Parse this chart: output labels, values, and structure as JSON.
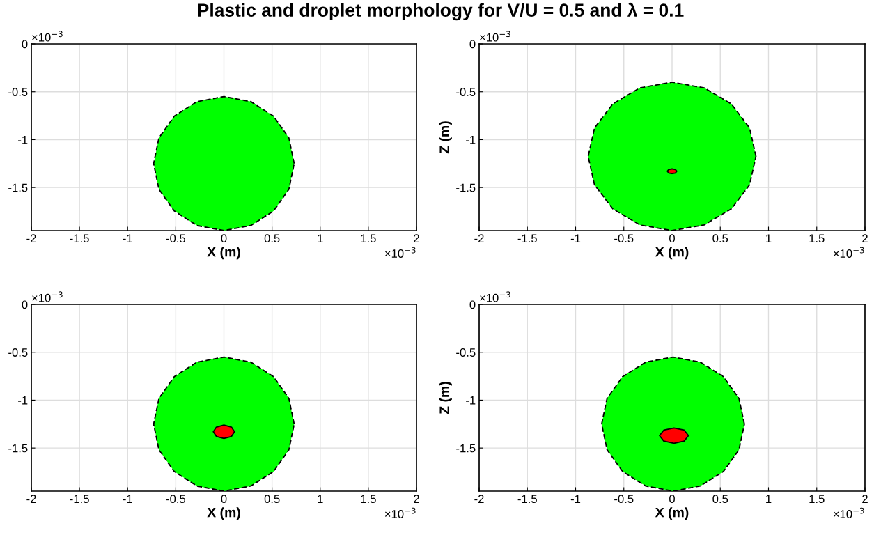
{
  "chart_data": [
    {
      "type": "area",
      "title": "Plastic and droplet morphology for V/U = 0.5 and λ = 0.1",
      "xlabel": "X (m)",
      "xlim": [
        -2,
        2
      ],
      "ylim": [
        -1.95,
        0
      ],
      "xticks": [
        -2,
        -1.5,
        -1,
        -0.5,
        0,
        0.5,
        1,
        1.5,
        2
      ],
      "yticks": [
        0,
        -0.5,
        -1,
        -1.5
      ],
      "grid": true,
      "annotations": [
        "×10$^{−3}$",
        "×10$^{−3}$"
      ],
      "series": [
        {
          "color": "#00ff00",
          "line_style": "dashed",
          "x": [
            0.73,
            0.675,
            0.516,
            0.28,
            0,
            -0.28,
            -0.516,
            -0.675,
            -0.73,
            -0.675,
            -0.516,
            -0.28,
            0,
            0.28,
            0.516,
            0.675
          ],
          "values": [
            -1.25,
            -0.982,
            -0.755,
            -0.603,
            -0.55,
            -0.603,
            -0.755,
            -0.982,
            -1.25,
            -1.518,
            -1.745,
            -1.897,
            -1.95,
            -1.897,
            -1.745,
            -1.518
          ]
        }
      ]
    },
    {
      "type": "area",
      "xlabel": "X (m)",
      "ylabel": "Z (m)",
      "xlim": [
        -2,
        2
      ],
      "ylim": [
        -1.95,
        0
      ],
      "xticks": [
        -2,
        -1.5,
        -1,
        -0.5,
        0,
        0.5,
        1,
        1.5,
        2
      ],
      "yticks": [
        0,
        -0.5,
        -1,
        -1.5
      ],
      "grid": true,
      "annotations": [
        "×10$^{−3}$",
        "×10$^{−3}$"
      ],
      "series": [
        {
          "color": "#00ff00",
          "line_style": "dashed",
          "x": [
            0.87,
            0.804,
            0.615,
            0.333,
            0,
            -0.333,
            -0.615,
            -0.804,
            -0.87,
            -0.804,
            -0.615,
            -0.333,
            0,
            0.333,
            0.615,
            0.804
          ],
          "values": [
            -1.175,
            -0.878,
            -0.627,
            -0.459,
            -0.4,
            -0.459,
            -0.627,
            -0.878,
            -1.175,
            -1.472,
            -1.723,
            -1.891,
            -1.95,
            -1.891,
            -1.723,
            -1.472
          ]
        },
        {
          "color": "#ff0000",
          "line_style": "solid",
          "x": [
            0.05,
            0.035,
            0,
            -0.035,
            -0.05,
            -0.035,
            0,
            0.035
          ],
          "values": [
            -1.33,
            -1.312,
            -1.305,
            -1.312,
            -1.33,
            -1.348,
            -1.355,
            -1.348
          ]
        }
      ]
    },
    {
      "type": "area",
      "xlabel": "X (m)",
      "xlim": [
        -2,
        2
      ],
      "ylim": [
        -1.95,
        0
      ],
      "xticks": [
        -2,
        -1.5,
        -1,
        -0.5,
        0,
        0.5,
        1,
        1.5,
        2
      ],
      "yticks": [
        0,
        -0.5,
        -1,
        -1.5
      ],
      "grid": true,
      "annotations": [
        "×10$^{−3}$",
        "×10$^{−3}$"
      ],
      "series": [
        {
          "color": "#00ff00",
          "line_style": "dashed",
          "x": [
            0.73,
            0.675,
            0.516,
            0.28,
            0,
            -0.28,
            -0.516,
            -0.675,
            -0.73,
            -0.675,
            -0.516,
            -0.28,
            0,
            0.28,
            0.516,
            0.675
          ],
          "values": [
            -1.25,
            -0.982,
            -0.755,
            -0.603,
            -0.55,
            -0.603,
            -0.755,
            -0.982,
            -1.25,
            -1.518,
            -1.745,
            -1.897,
            -1.95,
            -1.897,
            -1.745,
            -1.518
          ]
        },
        {
          "color": "#ff0000",
          "line_style": "solid",
          "x": [
            0.11,
            0.078,
            0,
            -0.078,
            -0.11,
            -0.078,
            0,
            0.078
          ],
          "values": [
            -1.33,
            -1.281,
            -1.26,
            -1.281,
            -1.33,
            -1.379,
            -1.4,
            -1.379
          ]
        }
      ]
    },
    {
      "type": "area",
      "xlabel": "X (m)",
      "ylabel": "Z (m)",
      "xlim": [
        -2,
        2
      ],
      "ylim": [
        -1.95,
        0
      ],
      "xticks": [
        -2,
        -1.5,
        -1,
        -0.5,
        0,
        0.5,
        1,
        1.5,
        2
      ],
      "yticks": [
        0,
        -0.5,
        -1,
        -1.5
      ],
      "grid": true,
      "annotations": [
        "×10$^{−3}$",
        "×10$^{−3}$"
      ],
      "series": [
        {
          "color": "#00ff00",
          "line_style": "dashed",
          "x": [
            0.75,
            0.694,
            0.533,
            0.293,
            0.01,
            -0.273,
            -0.513,
            -0.674,
            -0.73,
            -0.674,
            -0.513,
            -0.273,
            0.01,
            0.293,
            0.533,
            0.694
          ],
          "values": [
            -1.25,
            -0.982,
            -0.755,
            -0.603,
            -0.55,
            -0.603,
            -0.755,
            -0.982,
            -1.25,
            -1.518,
            -1.745,
            -1.897,
            -1.95,
            -1.897,
            -1.745,
            -1.518
          ]
        },
        {
          "color": "#ff0000",
          "line_style": "solid",
          "x": [
            0.17,
            0.126,
            0.02,
            -0.086,
            -0.13,
            -0.086,
            0.02,
            0.126
          ],
          "values": [
            -1.37,
            -1.313,
            -1.29,
            -1.313,
            -1.37,
            -1.427,
            -1.45,
            -1.427
          ]
        }
      ]
    }
  ]
}
